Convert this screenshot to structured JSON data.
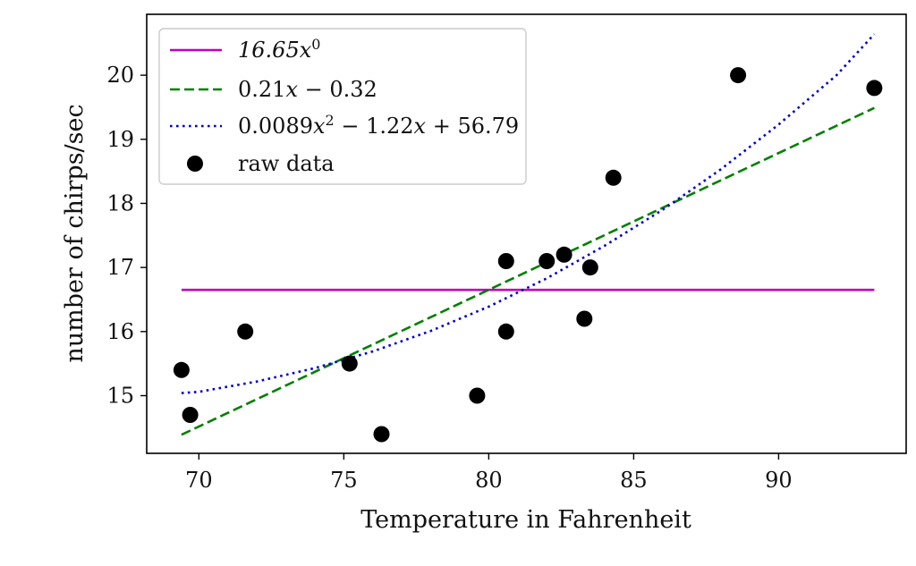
{
  "chart_data": {
    "type": "scatter",
    "title": "",
    "xlabel": "Temperature in Fahrenheit",
    "ylabel": "number of chirps/sec",
    "xlim": [
      68.2,
      94.4
    ],
    "ylim": [
      14.1,
      20.95
    ],
    "xticks": [
      70,
      75,
      80,
      85,
      90
    ],
    "yticks": [
      15,
      16,
      17,
      18,
      19,
      20
    ],
    "grid": false,
    "legend_position": "top-left",
    "series": [
      {
        "name": "16.65x^0",
        "kind": "line",
        "style": "solid",
        "color": "#bf00bf",
        "x": [
          69.4,
          93.3
        ],
        "y": [
          16.65,
          16.65
        ]
      },
      {
        "name": "0.21x − 0.32",
        "kind": "line",
        "style": "dashed",
        "color": "#008000",
        "x": [
          69.4,
          93.3
        ],
        "y": [
          14.39,
          19.49
        ]
      },
      {
        "name": "0.0089x^2 − 1.22x + 56.79",
        "kind": "line",
        "style": "dotted",
        "color": "#0000cc",
        "x": [
          69.4,
          70.0,
          72.0,
          74.0,
          76.0,
          78.0,
          80.0,
          82.0,
          84.0,
          86.0,
          88.0,
          90.0,
          92.0,
          93.3
        ],
        "y": [
          15.04,
          15.06,
          15.22,
          15.43,
          15.69,
          16.01,
          16.39,
          16.83,
          17.34,
          17.9,
          18.53,
          19.23,
          20.0,
          20.64
        ]
      },
      {
        "name": "raw data",
        "kind": "scatter",
        "color": "#000000",
        "x": [
          69.4,
          69.7,
          71.6,
          75.2,
          76.3,
          79.6,
          80.6,
          80.6,
          82.0,
          82.6,
          83.3,
          83.5,
          84.3,
          88.6,
          93.3
        ],
        "y": [
          15.4,
          14.7,
          16.0,
          15.5,
          14.4,
          15.0,
          17.1,
          16.0,
          17.1,
          17.2,
          16.2,
          17.0,
          18.4,
          20.0,
          19.8
        ]
      }
    ]
  }
}
